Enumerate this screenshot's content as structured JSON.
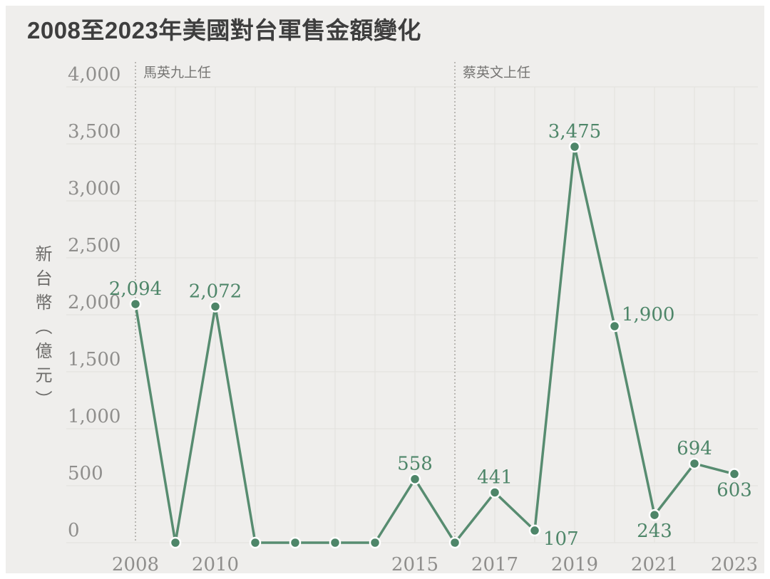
{
  "page": {
    "title": "2008至2023年美國對台軍售金額變化"
  },
  "chart_data": {
    "type": "line",
    "title": "2008至2023年美國對台軍售金額變化",
    "xlabel": "",
    "ylabel": "新台幣（億元）",
    "x": [
      2008,
      2009,
      2010,
      2011,
      2012,
      2013,
      2014,
      2015,
      2016,
      2017,
      2018,
      2019,
      2020,
      2021,
      2022,
      2023
    ],
    "values": [
      2094,
      0,
      2072,
      0,
      0,
      0,
      0,
      558,
      0,
      441,
      107,
      3475,
      1900,
      243,
      694,
      603
    ],
    "ylim": [
      0,
      4000
    ],
    "y_tick_step": 500,
    "x_tick_years": [
      2008,
      2010,
      2015,
      2017,
      2019,
      2021,
      2023
    ],
    "grid": true,
    "legend": "none",
    "annotations": [
      {
        "year": 2008,
        "label": "馬英九上任"
      },
      {
        "year": 2016,
        "label": "蔡英文上任"
      }
    ],
    "point_labels": [
      {
        "year": 2008,
        "text": "2,094",
        "placement": "above"
      },
      {
        "year": 2010,
        "text": "2,072",
        "placement": "above"
      },
      {
        "year": 2015,
        "text": "558",
        "placement": "above"
      },
      {
        "year": 2017,
        "text": "441",
        "placement": "above"
      },
      {
        "year": 2018,
        "text": "107",
        "placement": "below-right"
      },
      {
        "year": 2019,
        "text": "3,475",
        "placement": "above"
      },
      {
        "year": 2020,
        "text": "1,900",
        "placement": "right"
      },
      {
        "year": 2021,
        "text": "243",
        "placement": "below"
      },
      {
        "year": 2022,
        "text": "694",
        "placement": "above"
      },
      {
        "year": 2023,
        "text": "603",
        "placement": "below"
      }
    ],
    "colors": {
      "line": "#578c70",
      "marker": "#4e8669",
      "marker_ring": "#ffffff",
      "point_label": "#4e8669",
      "grid": "#e2e0dd",
      "dashed_line": "#a8a6a2",
      "annotation_text": "#767573",
      "tick_label": "#8f8e8c",
      "title": "#3e3e3e",
      "axis_title": "#6d6c6a",
      "background": "#efeeec",
      "frame": "#ffffff"
    }
  }
}
